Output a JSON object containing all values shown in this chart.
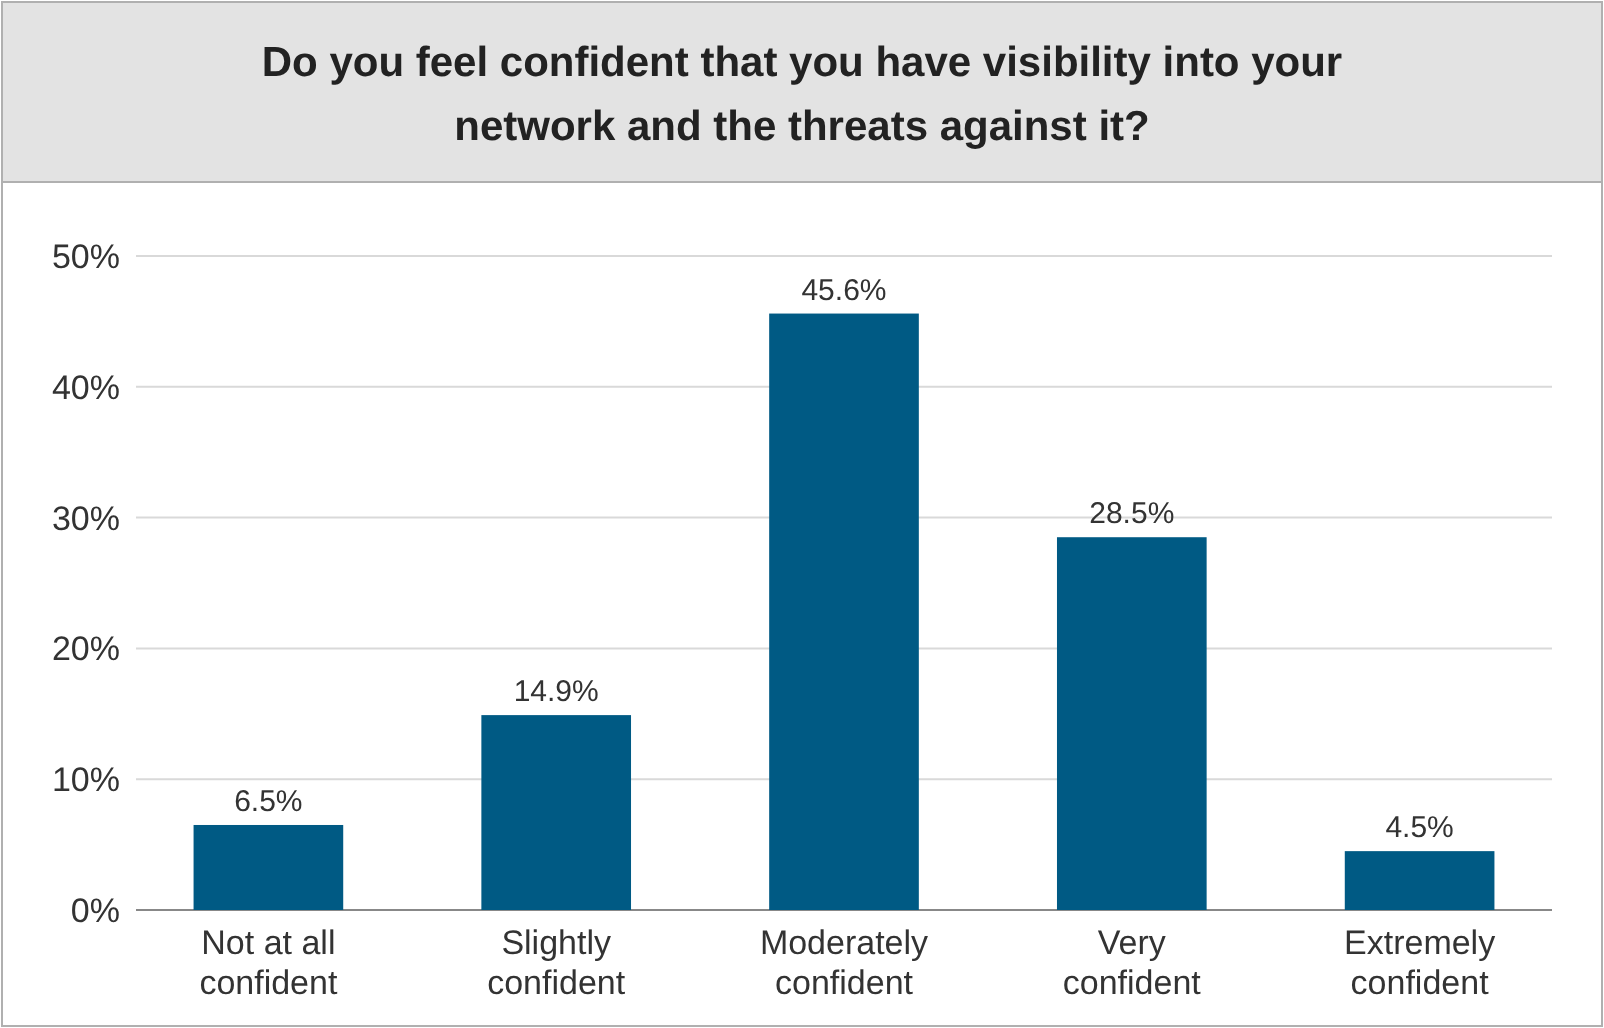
{
  "chart_data": {
    "type": "bar",
    "title": "Do you feel confident that you have visibility into your network and the threats against it?",
    "categories": [
      "Not at all confident",
      "Slightly confident",
      "Moderately confident",
      "Very confident",
      "Extremely confident"
    ],
    "values": [
      6.5,
      14.9,
      45.6,
      28.5,
      4.5
    ],
    "value_labels": [
      "6.5%",
      "14.9%",
      "45.6%",
      "28.5%",
      "4.5%"
    ],
    "color": "#005a84",
    "ylim": [
      0,
      50
    ],
    "yticks": [
      {
        "value": 0,
        "label": "0%"
      },
      {
        "value": 10,
        "label": "10%"
      },
      {
        "value": 20,
        "label": "20%"
      },
      {
        "value": 30,
        "label": "30%"
      },
      {
        "value": 40,
        "label": "40%"
      },
      {
        "value": 50,
        "label": "50%"
      }
    ],
    "grid": "y"
  }
}
